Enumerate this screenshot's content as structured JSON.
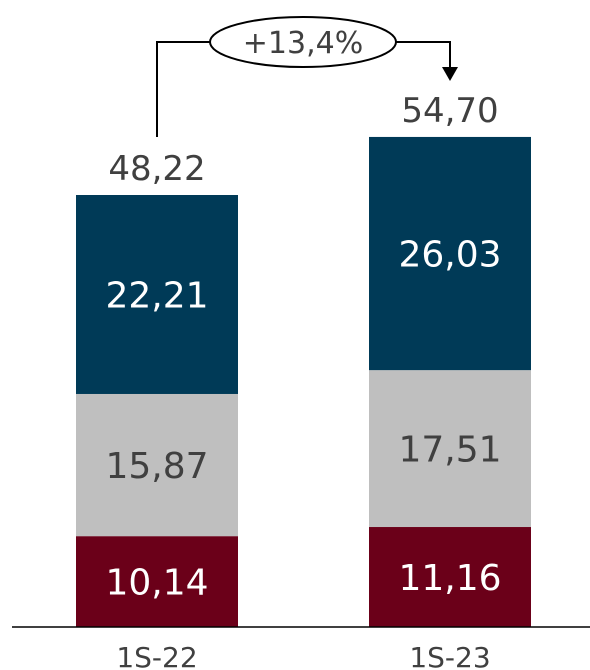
{
  "chart_data": {
    "type": "bar",
    "stacked": true,
    "categories": [
      "1S-22",
      "1S-23"
    ],
    "series": [
      {
        "values": [
          10.14,
          11.16
        ],
        "labels": [
          "10,14",
          "11,16"
        ],
        "color": "#6b0019",
        "label_color": "#ffffff"
      },
      {
        "values": [
          15.87,
          17.51
        ],
        "labels": [
          "15,87",
          "17,51"
        ],
        "color": "#bfbfbf",
        "label_color": "#404040"
      },
      {
        "values": [
          22.21,
          26.03
        ],
        "labels": [
          "22,21",
          "26,03"
        ],
        "color": "#003a57",
        "label_color": "#ffffff"
      }
    ],
    "totals": [
      48.22,
      54.7
    ],
    "total_labels": [
      "48,22",
      "54,70"
    ],
    "growth_label": "+13,4%",
    "ylim": [
      0,
      60
    ],
    "grid": false,
    "legend": "none"
  }
}
